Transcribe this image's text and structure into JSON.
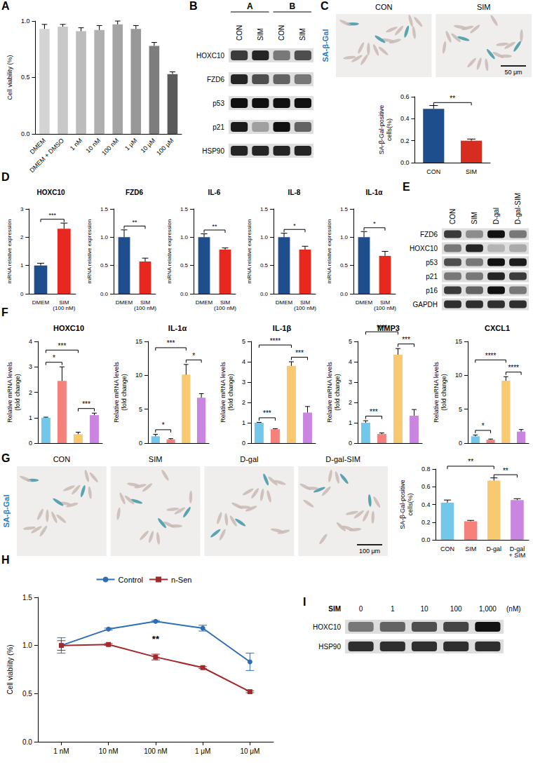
{
  "chart_data": [
    {
      "panel_label": "A",
      "type": "bar",
      "ylabel": "Cell viability (%)",
      "categories": [
        "DMEM",
        "DMEM + DMSO",
        "1 nM",
        "10 nM",
        "100 nM",
        "1 μM",
        "10 μM",
        "100 μM"
      ],
      "values": [
        0.93,
        0.95,
        0.91,
        0.92,
        0.97,
        0.93,
        0.78,
        0.53
      ],
      "errors": [
        0.04,
        0.02,
        0.03,
        0.04,
        0.03,
        0.03,
        0.03,
        0.02
      ],
      "colors": [
        "#d4d4d4",
        "#c8c8c8",
        "#bcbcbc",
        "#b0b0b0",
        "#a4a4a4",
        "#989898",
        "#7d7d7d",
        "#5a5a5a"
      ],
      "ylim": [
        0,
        1
      ],
      "yticks": [
        {
          "value": 0,
          "label": "0.0"
        },
        0.5,
        {
          "value": 1,
          "label": "1.0"
        }
      ],
      "grid": false
    },
    {
      "type": "bar",
      "ylabel": "SA-β-Gal-positive cells(%)",
      "categories": [
        "CON",
        "SIM"
      ],
      "values": [
        0.49,
        0.2
      ],
      "errors": [
        0.03,
        0.015
      ],
      "colors": [
        "#1f4e8c",
        "#d62d20"
      ],
      "ylim": [
        0,
        0.6
      ],
      "yticks": [
        {
          "value": 0,
          "label": "0.0"
        },
        0.2,
        0.4,
        0.6
      ],
      "comparisons": [
        {
          "from": "CON",
          "to": "SIM",
          "label": "**"
        }
      ],
      "grid": false
    },
    {
      "panel_label": "D",
      "type": "bar",
      "title": "HOXC10",
      "ylabel": "mRNA relative expression",
      "categories": [
        "DMEM",
        "SIM (100 nM)"
      ],
      "values": [
        1.0,
        2.3
      ],
      "errors": [
        0.08,
        0.2
      ],
      "colors": [
        "#1f4e8c",
        "#e8281e"
      ],
      "ylim": [
        0,
        3
      ],
      "yticks": [
        0,
        1,
        2,
        3
      ],
      "comparisons": [
        {
          "from": "DMEM",
          "to": "SIM (100 nM)",
          "label": "***"
        }
      ],
      "grid": false
    },
    {
      "type": "bar",
      "title": "FZD6",
      "ylabel": "mRNA relative expression",
      "categories": [
        "DMEM",
        "SIM (100 nM)"
      ],
      "values": [
        1.0,
        0.57
      ],
      "errors": [
        0.13,
        0.06
      ],
      "colors": [
        "#1f4e8c",
        "#e8281e"
      ],
      "ylim": [
        0,
        1.5
      ],
      "yticks": [
        {
          "value": 0,
          "label": "0.0"
        },
        0.5,
        {
          "value": 1,
          "label": "1.0"
        },
        1.5
      ],
      "comparisons": [
        {
          "from": "DMEM",
          "to": "SIM (100 nM)",
          "label": "**"
        }
      ],
      "grid": false
    },
    {
      "type": "bar",
      "title": "IL-6",
      "ylabel": "mRNA relative expression",
      "categories": [
        "DMEM",
        "SIM (100 nM)"
      ],
      "values": [
        1.0,
        0.78
      ],
      "errors": [
        0.06,
        0.03
      ],
      "colors": [
        "#1f4e8c",
        "#e8281e"
      ],
      "ylim": [
        0,
        1.5
      ],
      "yticks": [
        {
          "value": 0,
          "label": "0.0"
        },
        0.5,
        {
          "value": 1,
          "label": "1.0"
        },
        1.5
      ],
      "comparisons": [
        {
          "from": "DMEM",
          "to": "SIM (100 nM)",
          "label": "**"
        }
      ],
      "grid": false
    },
    {
      "type": "bar",
      "title": "IL-8",
      "ylabel": "mRNA relative expression",
      "categories": [
        "DMEM",
        "SIM (100 nM)"
      ],
      "values": [
        1.0,
        0.78
      ],
      "errors": [
        0.07,
        0.06
      ],
      "colors": [
        "#1f4e8c",
        "#e8281e"
      ],
      "ylim": [
        0,
        1.5
      ],
      "yticks": [
        {
          "value": 0,
          "label": "0.0"
        },
        0.5,
        {
          "value": 1,
          "label": "1.0"
        },
        1.5
      ],
      "comparisons": [
        {
          "from": "DMEM",
          "to": "SIM (100 nM)",
          "label": "*"
        }
      ],
      "grid": false
    },
    {
      "type": "bar",
      "title": "IL-1α",
      "ylabel": "mRNA relative expression",
      "categories": [
        "DMEM",
        "SIM (100 nM)"
      ],
      "values": [
        1.0,
        0.67
      ],
      "errors": [
        0.1,
        0.08
      ],
      "colors": [
        "#1f4e8c",
        "#e8281e"
      ],
      "ylim": [
        0,
        1.5
      ],
      "yticks": [
        {
          "value": 0,
          "label": "0.0"
        },
        0.5,
        {
          "value": 1,
          "label": "1.0"
        },
        1.5
      ],
      "comparisons": [
        {
          "from": "DMEM",
          "to": "SIM (100 nM)",
          "label": "*"
        }
      ],
      "grid": false
    },
    {
      "panel_label": "F",
      "type": "bar",
      "title": "HOXC10",
      "ylabel": "Relative mRNA levels (fold change)",
      "categories": [
        null,
        null,
        null,
        null
      ],
      "tick_labels": "y",
      "values": [
        1.0,
        2.45,
        0.35,
        1.1
      ],
      "errors": [
        0.02,
        0.55,
        0.08,
        0.08
      ],
      "colors": [
        "#72c7ea",
        "#f4817c",
        "#f8c971",
        "#c985e0"
      ],
      "ylim": [
        0,
        4
      ],
      "yticks": [
        0,
        1,
        2,
        3,
        4
      ],
      "comparisons": [
        {
          "from": 0,
          "to": 1,
          "label": "*"
        },
        {
          "from": 0,
          "to": 2,
          "label": "***"
        },
        {
          "from": 2,
          "to": 3,
          "label": "***"
        }
      ],
      "grid": false
    },
    {
      "type": "bar",
      "title": "IL-1α",
      "ylabel": "Relative mRNA levels (fold change)",
      "categories": [
        null,
        null,
        null,
        null
      ],
      "tick_labels": "y",
      "values": [
        1.0,
        0.55,
        10.1,
        6.7
      ],
      "errors": [
        0.3,
        0.1,
        1.5,
        0.6
      ],
      "colors": [
        "#72c7ea",
        "#f4817c",
        "#f8c971",
        "#c985e0"
      ],
      "ylim": [
        0,
        15
      ],
      "yticks": [
        0,
        5,
        10,
        15
      ],
      "comparisons": [
        {
          "from": 0,
          "to": 1,
          "label": "*"
        },
        {
          "from": 0,
          "to": 2,
          "label": "***"
        },
        {
          "from": 2,
          "to": 3,
          "label": "*"
        }
      ],
      "grid": false
    },
    {
      "type": "bar",
      "title": "IL-1β",
      "ylabel": "Relative mRNA levels (fold change)",
      "categories": [
        null,
        null,
        null,
        null
      ],
      "tick_labels": "y",
      "values": [
        1.0,
        0.68,
        3.8,
        1.5
      ],
      "errors": [
        0.02,
        0.03,
        0.2,
        0.3
      ],
      "colors": [
        "#72c7ea",
        "#f4817c",
        "#f8c971",
        "#c985e0"
      ],
      "ylim": [
        0,
        5
      ],
      "yticks": [
        0,
        1,
        2,
        3,
        4,
        5
      ],
      "comparisons": [
        {
          "from": 0,
          "to": 1,
          "label": "***"
        },
        {
          "from": 0,
          "to": 2,
          "label": "****"
        },
        {
          "from": 2,
          "to": 3,
          "label": "***"
        }
      ],
      "grid": false
    },
    {
      "type": "bar",
      "title": "MMP3",
      "ylabel": "Relative mRNA levels (fold change)",
      "categories": [
        null,
        null,
        null,
        null
      ],
      "tick_labels": "y",
      "values": [
        1.0,
        0.45,
        4.35,
        1.35
      ],
      "errors": [
        0.1,
        0.05,
        0.3,
        0.3
      ],
      "colors": [
        "#72c7ea",
        "#f4817c",
        "#f8c971",
        "#c985e0"
      ],
      "ylim": [
        0,
        5
      ],
      "yticks": [
        0,
        1,
        2,
        3,
        4,
        5
      ],
      "comparisons": [
        {
          "from": 0,
          "to": 1,
          "label": "***"
        },
        {
          "from": 0,
          "to": 2,
          "label": "****"
        },
        {
          "from": 2,
          "to": 3,
          "label": "***"
        }
      ],
      "grid": false
    },
    {
      "type": "bar",
      "title": "CXCL1",
      "ylabel": "Relative mRNA levels (fold change)",
      "categories": [
        null,
        null,
        null,
        null
      ],
      "tick_labels": "y",
      "values": [
        1.0,
        0.5,
        9.2,
        1.7
      ],
      "errors": [
        0.2,
        0.1,
        0.6,
        0.3
      ],
      "colors": [
        "#72c7ea",
        "#f4817c",
        "#f8c971",
        "#c985e0"
      ],
      "ylim": [
        0,
        15
      ],
      "yticks": [
        0,
        5,
        10,
        15
      ],
      "comparisons": [
        {
          "from": 0,
          "to": 1,
          "label": "*"
        },
        {
          "from": 0,
          "to": 2,
          "label": "****"
        },
        {
          "from": 2,
          "to": 3,
          "label": "****"
        }
      ],
      "grid": false
    },
    {
      "type": "bar",
      "ylabel": "SA-β-Gal-positive cells(%)",
      "categories": [
        "CON",
        "SIM",
        "D-gal",
        "D-gal + SIM"
      ],
      "values": [
        0.42,
        0.21,
        0.67,
        0.45
      ],
      "errors": [
        0.03,
        0.01,
        0.03,
        0.015
      ],
      "colors": [
        "#72c7ea",
        "#f4817c",
        "#f8c971",
        "#c985e0"
      ],
      "ylim": [
        0,
        0.8
      ],
      "yticks": [
        {
          "value": 0,
          "label": "0.0"
        },
        0.2,
        0.4,
        0.6,
        0.8
      ],
      "comparisons": [
        {
          "from": "CON",
          "to": "D-gal",
          "label": "**"
        },
        {
          "from": "D-gal",
          "to": "D-gal + SIM",
          "label": "**"
        }
      ],
      "grid": false
    },
    {
      "panel_label": "H",
      "type": "line",
      "ylabel": "Cell viability (%)",
      "categories": [
        "1 nM",
        "10 nM",
        "100 nM",
        "1 μM",
        "10 μM"
      ],
      "series": [
        {
          "name": "Control",
          "color": "#2f6db5",
          "marker": "circle",
          "values": [
            1.0,
            1.17,
            1.25,
            1.18,
            0.83
          ],
          "errors": [
            0.08,
            0.01,
            0.01,
            0.03,
            0.09
          ]
        },
        {
          "name": "n-Sen",
          "color": "#a3282b",
          "marker": "square",
          "values": [
            1.0,
            1.01,
            0.88,
            0.77,
            0.52
          ],
          "errors": [
            0.05,
            0.01,
            0.03,
            0.01,
            0.01
          ]
        }
      ],
      "ylim": [
        0,
        1.5
      ],
      "yticks": [
        {
          "value": 0,
          "label": "0.0"
        },
        0.5,
        {
          "value": 1,
          "label": "1.0"
        },
        1.5
      ],
      "legend": "top",
      "annotations": [
        {
          "x": "100 nM",
          "text": "**"
        }
      ],
      "grid": false
    }
  ],
  "blots": [
    {
      "panel_label": "B",
      "groups": [
        {
          "label": "A",
          "lanes": 2
        },
        {
          "label": "B",
          "lanes": 2
        }
      ],
      "lanes": [
        "CON",
        "SIM",
        "CON",
        "SIM"
      ],
      "rows": [
        {
          "name": "HOXC10",
          "bands": [
            0.8,
            0.9,
            0.5,
            0.7
          ]
        },
        {
          "name": "FZD6",
          "bands": [
            0.9,
            0.7,
            0.6,
            0.5
          ]
        },
        {
          "name": "p53",
          "bands": [
            1,
            1,
            1,
            1
          ]
        },
        {
          "name": "p21",
          "bands": [
            0.95,
            0.3,
            1,
            0.6
          ]
        },
        {
          "name": "HSP90",
          "bands": [
            0.9,
            0.9,
            0.9,
            0.9
          ]
        }
      ]
    },
    {
      "panel_label": "E",
      "lanes": [
        "CON",
        "SIM",
        "D-gal",
        "D-gal-SIM"
      ],
      "rows": [
        {
          "name": "FZD6",
          "bands": [
            0.8,
            0.4,
            1,
            0.5
          ]
        },
        {
          "name": "HOXC10",
          "bands": [
            0.5,
            0.9,
            0.2,
            0.25
          ]
        },
        {
          "name": "p53",
          "bands": [
            0.7,
            0.5,
            1,
            0.95
          ]
        },
        {
          "name": "p21",
          "bands": [
            0.5,
            0.5,
            0.9,
            0.8
          ]
        },
        {
          "name": "p16",
          "bands": [
            0.8,
            0.6,
            1,
            0.5
          ]
        },
        {
          "name": "GAPDH",
          "bands": [
            0.85,
            0.85,
            0.85,
            0.85
          ]
        }
      ]
    },
    {
      "panel_label": "I",
      "lane_title": "SIM",
      "lane_unit": "(nM)",
      "lanes": [
        "0",
        "1",
        "10",
        "100",
        "1,000"
      ],
      "rows": [
        {
          "name": "HOXC10",
          "bands": [
            0.5,
            0.6,
            0.7,
            0.75,
            1
          ]
        },
        {
          "name": "HSP90",
          "bands": [
            0.85,
            0.85,
            0.85,
            0.85,
            0.85
          ]
        }
      ]
    }
  ],
  "micrographs": [
    {
      "panel_label": "C",
      "stain": "SA-β-Gal",
      "conditions": [
        "CON",
        "SIM"
      ],
      "scale_bar": "50 μm"
    },
    {
      "panel_label": "G",
      "stain": "SA-β-Gal",
      "conditions": [
        "CON",
        "SIM",
        "D-gal",
        "D-gal-SIM"
      ],
      "scale_bar": "100 μm"
    }
  ]
}
